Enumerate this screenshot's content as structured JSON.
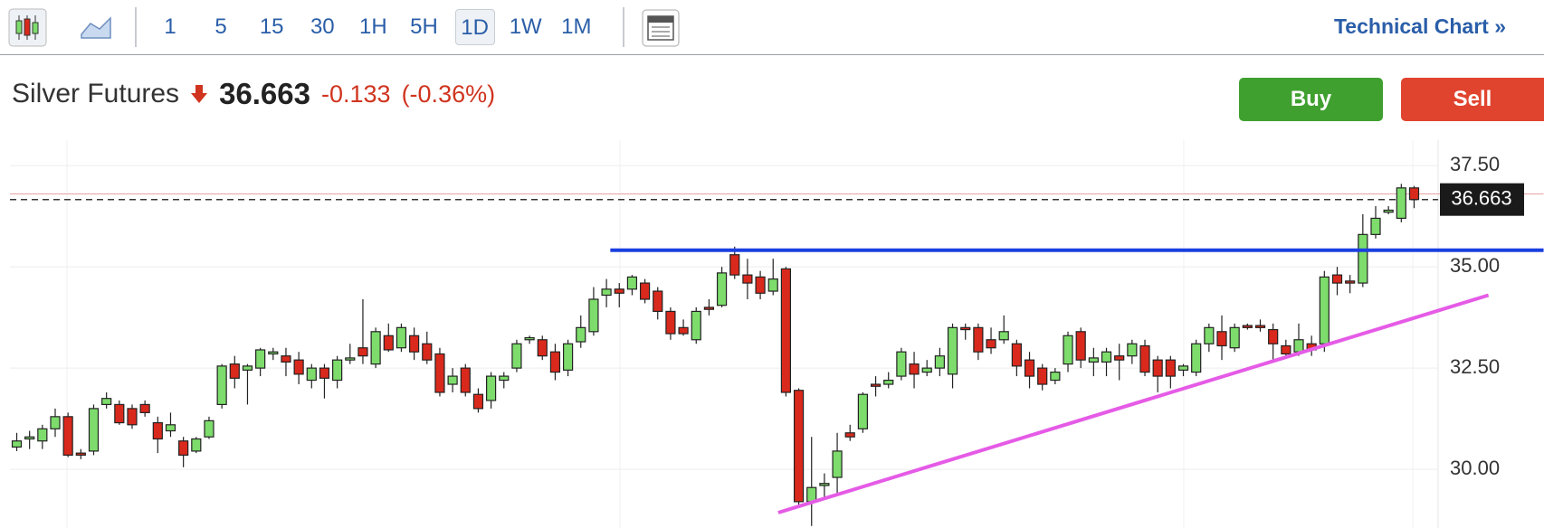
{
  "toolbar": {
    "intervals": [
      "1",
      "5",
      "15",
      "30",
      "1H",
      "5H",
      "1D",
      "1W",
      "1M"
    ],
    "selected_interval": "1D",
    "link": "Technical Chart »"
  },
  "quote": {
    "name": "Silver Futures",
    "change": "-0.133",
    "change_percent": "(-0.36%)",
    "buy": "Buy",
    "sell": "Sell"
  },
  "chart_data": {
    "type": "candlestick",
    "grid": true,
    "up_color": "#7ddc6c",
    "down_color": "#d9291c",
    "ylim": [
      28.55,
      38.13
    ],
    "yticks": [
      {
        "value": 37.5,
        "label": "37.50"
      },
      {
        "value": 35,
        "label": "35.00"
      },
      {
        "value": 32.5,
        "label": "32.50"
      },
      {
        "value": 30,
        "label": "30.00"
      }
    ],
    "last_price": 36.663,
    "open": [
      30.55,
      30.75,
      30.7,
      31.0,
      31.3,
      30.4,
      30.45,
      31.6,
      31.6,
      31.5,
      31.6,
      31.15,
      30.95,
      30.7,
      30.45,
      30.8,
      31.6,
      32.6,
      32.45,
      32.5,
      32.85,
      32.8,
      32.7,
      32.2,
      32.5,
      32.2,
      32.7,
      33.0,
      32.6,
      33.3,
      33.0,
      33.3,
      33.1,
      32.85,
      32.1,
      32.5,
      31.85,
      31.7,
      32.2,
      32.5,
      33.2,
      33.2,
      32.9,
      32.45,
      33.15,
      33.4,
      34.3,
      34.45,
      34.45,
      34.6,
      34.4,
      33.9,
      33.5,
      33.2,
      34.0,
      34.05,
      35.3,
      34.8,
      34.75,
      34.4,
      34.95,
      31.95,
      29.2,
      29.6,
      29.8,
      30.9,
      31.0,
      32.1,
      32.1,
      32.3,
      32.6,
      32.4,
      32.5,
      32.35,
      33.5,
      33.5,
      33.2,
      33.2,
      33.1,
      32.7,
      32.5,
      32.2,
      32.6,
      33.4,
      32.65,
      32.65,
      32.8,
      32.8,
      33.05,
      32.7,
      32.7,
      32.45,
      32.4,
      33.1,
      33.4,
      33.0,
      33.55,
      33.55,
      33.45,
      33.05,
      32.9,
      33.1,
      33.1,
      34.8,
      34.65,
      34.6,
      35.8,
      36.35,
      36.2,
      36.95
    ],
    "high": [
      30.9,
      30.95,
      31.1,
      31.5,
      31.4,
      30.5,
      31.6,
      31.9,
      31.7,
      31.6,
      31.7,
      31.3,
      31.4,
      30.8,
      30.8,
      31.3,
      32.6,
      32.8,
      32.6,
      33.0,
      33.0,
      33.0,
      32.9,
      32.6,
      32.6,
      32.8,
      33.1,
      34.2,
      33.5,
      33.6,
      33.6,
      33.5,
      33.4,
      33.0,
      32.5,
      32.6,
      32.0,
      32.4,
      32.4,
      33.2,
      33.3,
      33.3,
      33.1,
      33.2,
      33.8,
      34.5,
      34.7,
      34.6,
      34.8,
      34.7,
      34.5,
      34.0,
      33.7,
      34.0,
      34.2,
      35.0,
      35.5,
      35.2,
      34.9,
      35.2,
      35.0,
      32.0,
      30.8,
      29.9,
      30.9,
      31.1,
      31.9,
      32.3,
      32.4,
      33.0,
      32.9,
      32.7,
      33.0,
      33.6,
      33.6,
      33.6,
      33.5,
      33.8,
      33.2,
      32.9,
      32.6,
      32.5,
      33.4,
      33.5,
      33.0,
      33.0,
      33.1,
      33.2,
      33.2,
      32.8,
      32.8,
      32.6,
      33.2,
      33.6,
      33.8,
      33.6,
      33.6,
      33.7,
      33.6,
      33.2,
      33.6,
      33.3,
      34.9,
      35.0,
      34.8,
      36.3,
      36.5,
      36.5,
      37.05,
      37.0
    ],
    "low": [
      30.45,
      30.5,
      30.5,
      30.8,
      30.3,
      30.25,
      30.35,
      31.5,
      31.1,
      31.0,
      31.3,
      30.4,
      30.8,
      30.05,
      30.4,
      30.75,
      31.5,
      32.0,
      31.6,
      32.3,
      32.7,
      32.3,
      32.1,
      32.0,
      31.75,
      32.0,
      32.6,
      32.6,
      32.5,
      32.9,
      32.9,
      32.7,
      32.6,
      31.8,
      31.9,
      31.8,
      31.4,
      31.5,
      32.0,
      32.4,
      33.1,
      32.7,
      32.2,
      32.3,
      33.0,
      33.3,
      34.0,
      34.0,
      34.3,
      34.1,
      33.7,
      33.2,
      33.3,
      33.1,
      33.8,
      34.0,
      34.7,
      34.2,
      34.2,
      34.3,
      31.8,
      29.1,
      28.6,
      29.3,
      29.4,
      30.7,
      30.9,
      31.8,
      32.0,
      32.2,
      32.0,
      32.3,
      32.3,
      32.0,
      33.2,
      32.7,
      32.85,
      33.1,
      32.3,
      32.0,
      31.95,
      32.1,
      32.4,
      32.5,
      32.3,
      32.3,
      32.2,
      32.6,
      32.3,
      31.9,
      32.0,
      32.3,
      32.3,
      32.9,
      32.7,
      32.9,
      33.45,
      33.4,
      32.7,
      32.75,
      32.8,
      32.8,
      32.9,
      34.3,
      34.35,
      34.5,
      35.7,
      36.3,
      36.1,
      36.45
    ],
    "close": [
      30.7,
      30.8,
      31.0,
      31.3,
      30.35,
      30.35,
      31.5,
      31.75,
      31.15,
      31.1,
      31.4,
      30.75,
      31.1,
      30.35,
      30.75,
      31.2,
      32.55,
      32.25,
      32.55,
      32.95,
      32.9,
      32.65,
      32.35,
      32.5,
      32.25,
      32.7,
      32.75,
      32.8,
      33.4,
      32.95,
      33.5,
      32.9,
      32.7,
      31.9,
      32.3,
      31.9,
      31.5,
      32.3,
      32.3,
      33.1,
      33.25,
      32.8,
      32.4,
      33.1,
      33.5,
      34.2,
      34.45,
      34.35,
      34.75,
      34.2,
      33.9,
      33.35,
      33.35,
      33.9,
      33.95,
      34.85,
      34.8,
      34.6,
      34.35,
      34.7,
      31.9,
      29.2,
      29.55,
      29.65,
      30.45,
      30.8,
      31.85,
      32.05,
      32.2,
      32.9,
      32.35,
      32.5,
      32.8,
      33.5,
      33.45,
      32.9,
      33.0,
      33.4,
      32.55,
      32.3,
      32.1,
      32.4,
      33.3,
      32.7,
      32.75,
      32.9,
      32.7,
      33.1,
      32.4,
      32.3,
      32.3,
      32.55,
      33.1,
      33.5,
      33.05,
      33.5,
      33.5,
      33.5,
      33.1,
      32.85,
      33.2,
      32.95,
      34.75,
      34.6,
      34.6,
      35.8,
      36.2,
      36.4,
      36.95,
      36.663
    ],
    "lines": [
      {
        "color": "#e6a3a3",
        "width": 1,
        "x": [
          -0.54,
          119.1
        ],
        "values": [
          36.8,
          36.8
        ]
      },
      {
        "color": "#1a3fe0",
        "width": 4,
        "x": [
          46.3,
          119.1
        ],
        "values": [
          35.41,
          35.41
        ]
      },
      {
        "color": "#e55be6",
        "width": 4,
        "x": [
          59.4,
          114.8
        ],
        "values": [
          28.93,
          34.3
        ]
      }
    ]
  }
}
